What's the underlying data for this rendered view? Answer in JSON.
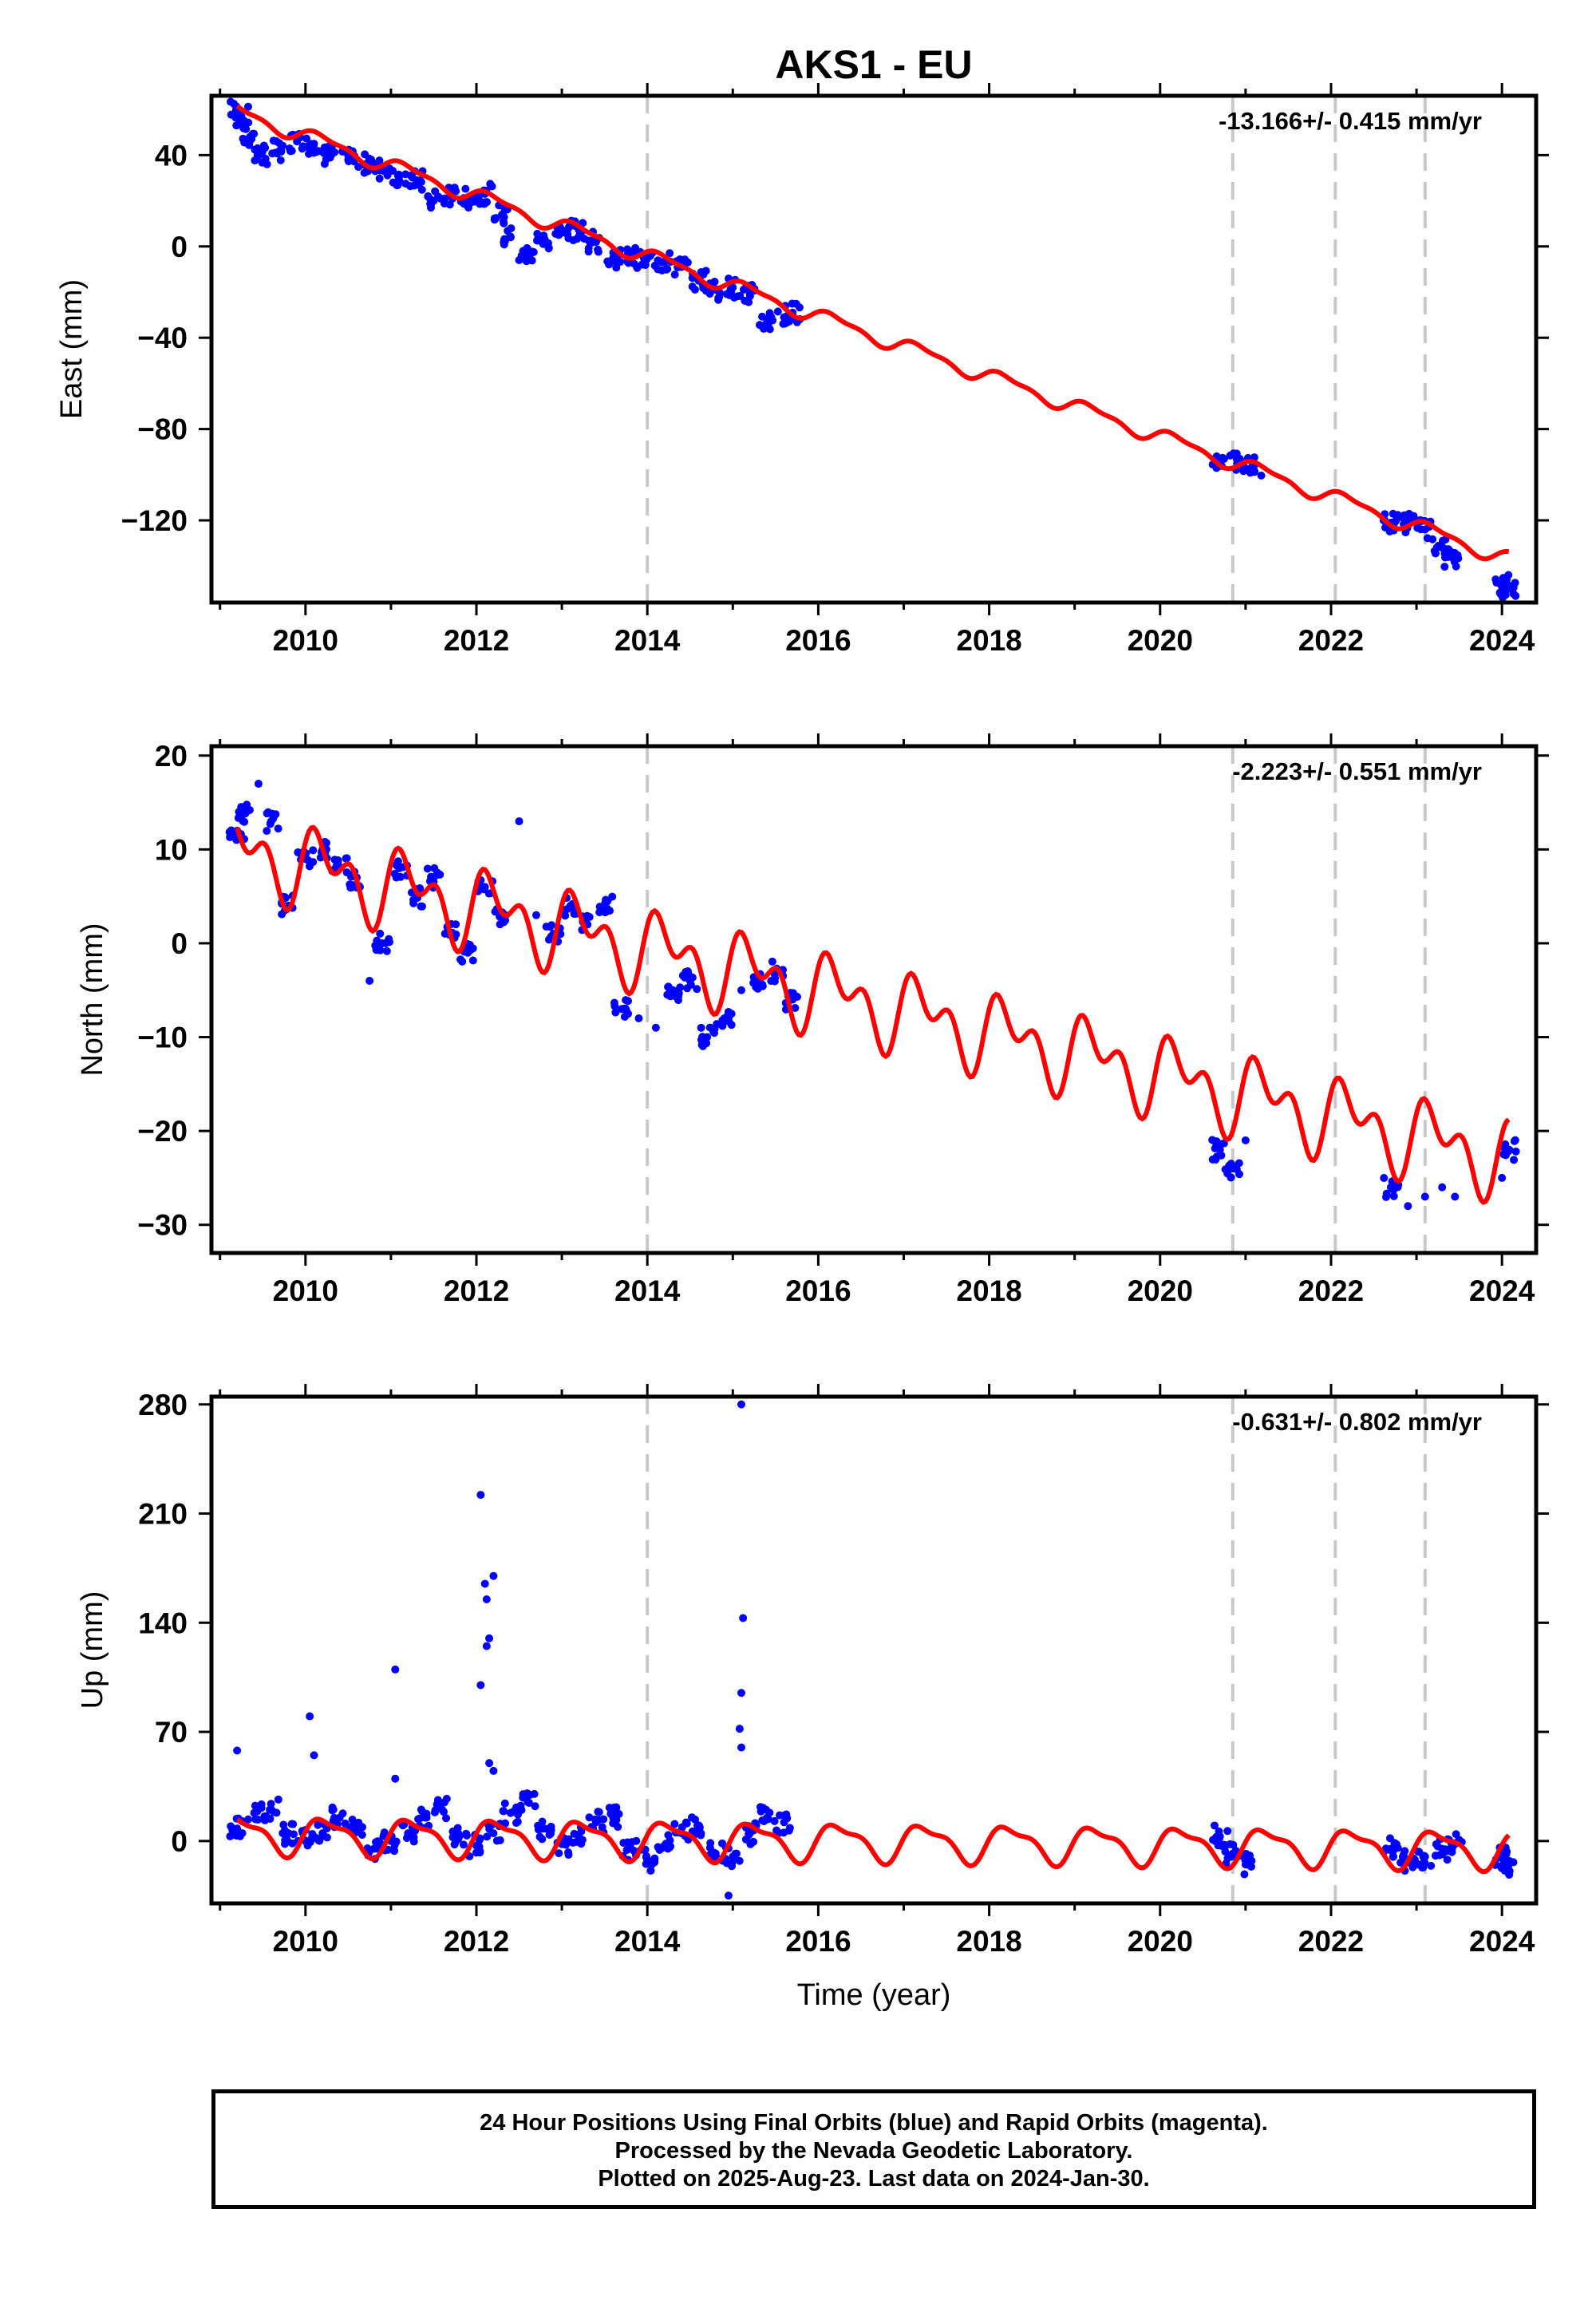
{
  "figure": {
    "title": "AKS1 - EU",
    "xlabel": "Time (year)"
  },
  "footer": {
    "lines": [
      "24 Hour Positions Using Final Orbits (blue) and Rapid Orbits (magenta).",
      "Processed by the Nevada Geodetic Laboratory.",
      "Plotted on 2025-Aug-23. Last data on 2024-Jan-30."
    ]
  },
  "colors": {
    "data_points": "#0000ff",
    "model_fit": "#ff0000",
    "event_lines": "#c8c8c8",
    "frame": "#000000"
  },
  "chart_data": [
    {
      "type": "scatter",
      "panel": "east",
      "ylabel": "East (mm)",
      "rate_text": "-13.166+/- 0.415 mm/yr",
      "xlim": [
        2008.9,
        2024.4
      ],
      "ylim": [
        -156,
        66
      ],
      "x_ticks": [
        2010,
        2012,
        2014,
        2016,
        2018,
        2020,
        2022,
        2024
      ],
      "y_ticks": [
        -120,
        -80,
        -40,
        0,
        40
      ],
      "y_tick_labels": [
        "−120",
        "−80",
        "−40",
        "0",
        "40"
      ],
      "event_lines": [
        2014.0,
        2020.85,
        2022.05,
        2023.1
      ],
      "model": {
        "offset": 59,
        "rate": -13.166,
        "t0": 2009.2,
        "annual_amp": 3.0,
        "annual_phase": 0.3,
        "semi_amp": 1.2,
        "semi_phase": 1.1
      },
      "observations": [
        {
          "x": 2009.2,
          "y": 60
        },
        {
          "x": 2009.25,
          "y": 57
        },
        {
          "x": 2009.35,
          "y": 48
        },
        {
          "x": 2009.45,
          "y": 40
        },
        {
          "x": 2009.55,
          "y": 36
        },
        {
          "x": 2009.7,
          "y": 42
        },
        {
          "x": 2009.9,
          "y": 46
        },
        {
          "x": 2010.1,
          "y": 45
        },
        {
          "x": 2010.3,
          "y": 40
        },
        {
          "x": 2010.5,
          "y": 38
        },
        {
          "x": 2010.7,
          "y": 36
        },
        {
          "x": 2010.9,
          "y": 34
        },
        {
          "x": 2011.1,
          "y": 31
        },
        {
          "x": 2011.3,
          "y": 29
        },
        {
          "x": 2011.5,
          "y": 20
        },
        {
          "x": 2011.7,
          "y": 22
        },
        {
          "x": 2011.9,
          "y": 21
        },
        {
          "x": 2012.1,
          "y": 23
        },
        {
          "x": 2012.3,
          "y": 14
        },
        {
          "x": 2012.4,
          "y": 4
        },
        {
          "x": 2012.5,
          "y": -6
        },
        {
          "x": 2012.6,
          "y": -4
        },
        {
          "x": 2012.8,
          "y": 3
        },
        {
          "x": 2013.0,
          "y": 6
        },
        {
          "x": 2013.2,
          "y": 7
        },
        {
          "x": 2013.4,
          "y": 2
        },
        {
          "x": 2013.6,
          "y": -5
        },
        {
          "x": 2013.8,
          "y": -5
        },
        {
          "x": 2014.0,
          "y": -5
        },
        {
          "x": 2014.2,
          "y": -7
        },
        {
          "x": 2014.4,
          "y": -9
        },
        {
          "x": 2014.6,
          "y": -15
        },
        {
          "x": 2014.8,
          "y": -19
        },
        {
          "x": 2015.0,
          "y": -18
        },
        {
          "x": 2015.2,
          "y": -21
        },
        {
          "x": 2015.4,
          "y": -33
        },
        {
          "x": 2015.6,
          "y": -31
        },
        {
          "x": 2015.7,
          "y": -29
        },
        {
          "x": 2020.7,
          "y": -93
        },
        {
          "x": 2020.9,
          "y": -95
        },
        {
          "x": 2021.1,
          "y": -96
        },
        {
          "x": 2022.7,
          "y": -121
        },
        {
          "x": 2022.9,
          "y": -121
        },
        {
          "x": 2023.1,
          "y": -124
        },
        {
          "x": 2023.3,
          "y": -132
        },
        {
          "x": 2023.4,
          "y": -136
        },
        {
          "x": 2024.0,
          "y": -148
        },
        {
          "x": 2024.08,
          "y": -150
        }
      ]
    },
    {
      "type": "scatter",
      "panel": "north",
      "ylabel": "North (mm)",
      "rate_text": "-2.223+/- 0.551 mm/yr",
      "xlim": [
        2008.9,
        2024.4
      ],
      "ylim": [
        -33,
        21
      ],
      "x_ticks": [
        2010,
        2012,
        2014,
        2016,
        2018,
        2020,
        2022,
        2024
      ],
      "y_ticks": [
        -30,
        -20,
        -10,
        0,
        10,
        20
      ],
      "y_tick_labels": [
        "−30",
        "−20",
        "−10",
        "0",
        "10",
        "20"
      ],
      "event_lines": [
        2014.0,
        2020.85,
        2022.05,
        2023.1
      ],
      "model": {
        "offset": 10,
        "rate": -2.223,
        "t0": 2009.2,
        "annual_amp": 3.0,
        "annual_phase": 0.2,
        "semi_amp": 2.5,
        "semi_phase": 0.9
      },
      "observations": [
        {
          "x": 2009.2,
          "y": 12
        },
        {
          "x": 2009.3,
          "y": 14
        },
        {
          "x": 2009.45,
          "y": 17
        },
        {
          "x": 2009.6,
          "y": 13
        },
        {
          "x": 2009.8,
          "y": 4
        },
        {
          "x": 2010.0,
          "y": 9
        },
        {
          "x": 2010.2,
          "y": 10
        },
        {
          "x": 2010.4,
          "y": 8
        },
        {
          "x": 2010.6,
          "y": 7
        },
        {
          "x": 2010.75,
          "y": -4
        },
        {
          "x": 2010.9,
          "y": 0
        },
        {
          "x": 2011.1,
          "y": 8
        },
        {
          "x": 2011.3,
          "y": 5
        },
        {
          "x": 2011.5,
          "y": 7
        },
        {
          "x": 2011.7,
          "y": 1
        },
        {
          "x": 2011.9,
          "y": -1
        },
        {
          "x": 2012.1,
          "y": 6
        },
        {
          "x": 2012.3,
          "y": 3
        },
        {
          "x": 2012.5,
          "y": 13
        },
        {
          "x": 2012.7,
          "y": 3
        },
        {
          "x": 2012.9,
          "y": 1
        },
        {
          "x": 2013.1,
          "y": 4
        },
        {
          "x": 2013.3,
          "y": 2
        },
        {
          "x": 2013.5,
          "y": 4
        },
        {
          "x": 2013.7,
          "y": -7
        },
        {
          "x": 2013.9,
          "y": -8
        },
        {
          "x": 2014.1,
          "y": -9
        },
        {
          "x": 2014.3,
          "y": -5
        },
        {
          "x": 2014.5,
          "y": -4
        },
        {
          "x": 2014.7,
          "y": -10
        },
        {
          "x": 2014.9,
          "y": -8
        },
        {
          "x": 2015.1,
          "y": -5
        },
        {
          "x": 2015.3,
          "y": -4
        },
        {
          "x": 2015.5,
          "y": -3
        },
        {
          "x": 2015.7,
          "y": -6
        },
        {
          "x": 2020.7,
          "y": -22
        },
        {
          "x": 2020.85,
          "y": -24
        },
        {
          "x": 2021.0,
          "y": -21
        },
        {
          "x": 2022.7,
          "y": -26
        },
        {
          "x": 2022.9,
          "y": -28
        },
        {
          "x": 2023.1,
          "y": -27
        },
        {
          "x": 2023.3,
          "y": -26
        },
        {
          "x": 2023.45,
          "y": -27
        },
        {
          "x": 2024.0,
          "y": -25
        },
        {
          "x": 2024.08,
          "y": -22
        }
      ]
    },
    {
      "type": "scatter",
      "panel": "up",
      "ylabel": "Up (mm)",
      "rate_text": "-0.631+/- 0.802 mm/yr",
      "xlim": [
        2008.9,
        2024.4
      ],
      "ylim": [
        -40,
        285
      ],
      "x_ticks": [
        2010,
        2012,
        2014,
        2016,
        2018,
        2020,
        2022,
        2024
      ],
      "y_ticks": [
        0,
        70,
        140,
        210,
        280
      ],
      "y_tick_labels": [
        "0",
        "70",
        "140",
        "210",
        "280"
      ],
      "event_lines": [
        2014.0,
        2020.85,
        2022.05,
        2023.1
      ],
      "model": {
        "offset": 4,
        "rate": -0.631,
        "t0": 2009.2,
        "annual_amp": 11.0,
        "annual_phase": 0.0,
        "semi_amp": 4.0,
        "semi_phase": 0.8
      },
      "observations": [
        {
          "x": 2009.2,
          "y": 8
        },
        {
          "x": 2009.4,
          "y": 18
        },
        {
          "x": 2009.6,
          "y": 20
        },
        {
          "x": 2009.8,
          "y": 5
        },
        {
          "x": 2010.0,
          "y": 0
        },
        {
          "x": 2010.2,
          "y": 5
        },
        {
          "x": 2010.4,
          "y": 15
        },
        {
          "x": 2010.6,
          "y": 10
        },
        {
          "x": 2010.8,
          "y": -5
        },
        {
          "x": 2011.0,
          "y": 0
        },
        {
          "x": 2011.2,
          "y": 5
        },
        {
          "x": 2011.4,
          "y": 15
        },
        {
          "x": 2011.6,
          "y": 20
        },
        {
          "x": 2011.8,
          "y": 3
        },
        {
          "x": 2012.0,
          "y": -3
        },
        {
          "x": 2012.2,
          "y": 5
        },
        {
          "x": 2012.4,
          "y": 18
        },
        {
          "x": 2012.6,
          "y": 25
        },
        {
          "x": 2012.8,
          "y": 8
        },
        {
          "x": 2013.0,
          "y": -2
        },
        {
          "x": 2013.2,
          "y": 3
        },
        {
          "x": 2013.4,
          "y": 12
        },
        {
          "x": 2013.6,
          "y": 15
        },
        {
          "x": 2013.8,
          "y": -5
        },
        {
          "x": 2014.0,
          "y": -12
        },
        {
          "x": 2014.2,
          "y": -3
        },
        {
          "x": 2014.4,
          "y": 5
        },
        {
          "x": 2014.6,
          "y": 10
        },
        {
          "x": 2014.8,
          "y": -8
        },
        {
          "x": 2015.0,
          "y": -10
        },
        {
          "x": 2015.2,
          "y": 5
        },
        {
          "x": 2015.4,
          "y": 15
        },
        {
          "x": 2015.6,
          "y": 12
        },
        {
          "x": 2009.2,
          "y": 58
        },
        {
          "x": 2010.05,
          "y": 80
        },
        {
          "x": 2010.1,
          "y": 55
        },
        {
          "x": 2011.05,
          "y": 110
        },
        {
          "x": 2011.05,
          "y": 40
        },
        {
          "x": 2012.05,
          "y": 222
        },
        {
          "x": 2012.1,
          "y": 165
        },
        {
          "x": 2012.12,
          "y": 155
        },
        {
          "x": 2012.2,
          "y": 170
        },
        {
          "x": 2012.15,
          "y": 130
        },
        {
          "x": 2012.12,
          "y": 125
        },
        {
          "x": 2012.05,
          "y": 100
        },
        {
          "x": 2012.15,
          "y": 50
        },
        {
          "x": 2012.2,
          "y": 45
        },
        {
          "x": 2015.1,
          "y": 280
        },
        {
          "x": 2015.12,
          "y": 143
        },
        {
          "x": 2015.1,
          "y": 95
        },
        {
          "x": 2015.08,
          "y": 72
        },
        {
          "x": 2015.1,
          "y": 60
        },
        {
          "x": 2014.95,
          "y": -35
        },
        {
          "x": 2020.7,
          "y": 3
        },
        {
          "x": 2020.85,
          "y": -8
        },
        {
          "x": 2021.0,
          "y": -15
        },
        {
          "x": 2022.7,
          "y": -5
        },
        {
          "x": 2022.9,
          "y": -12
        },
        {
          "x": 2023.1,
          "y": -10
        },
        {
          "x": 2023.3,
          "y": -5
        },
        {
          "x": 2023.45,
          "y": -2
        },
        {
          "x": 2024.0,
          "y": -10
        },
        {
          "x": 2024.08,
          "y": -15
        }
      ]
    }
  ]
}
